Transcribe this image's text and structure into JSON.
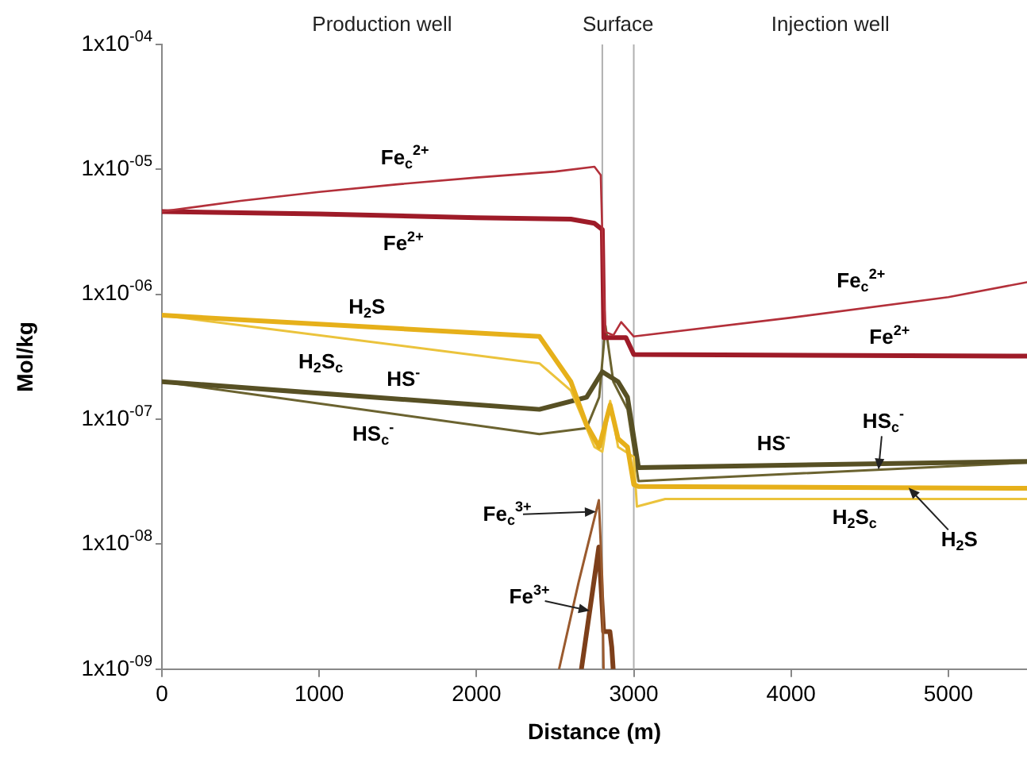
{
  "chart_data": {
    "type": "line",
    "xlabel": "Distance (m)",
    "ylabel": "Mol/kg",
    "log": "y",
    "grid": false,
    "legend": false,
    "line_style": "solid",
    "xlim": [
      0,
      5500
    ],
    "xticks": [
      0,
      1000,
      2000,
      3000,
      4000,
      5000
    ],
    "ylim": [
      1e-09,
      0.0001
    ],
    "yticks": [
      {
        "value": 0.0001,
        "label": "1x10$^{-04}$"
      },
      {
        "value": 1e-05,
        "label": "1x10$^{-05}$"
      },
      {
        "value": 1e-06,
        "label": "1x10$^{-06}$"
      },
      {
        "value": 1e-07,
        "label": "1x10$^{-07}$"
      },
      {
        "value": 1e-08,
        "label": "1x10$^{-08}$"
      },
      {
        "value": 1e-09,
        "label": "1x10$^{-09}$"
      }
    ],
    "ref_lines": [
      {
        "axis": "x",
        "value": 2800,
        "color": "#b0b0b0"
      },
      {
        "axis": "x",
        "value": 3000,
        "color": "#b0b0b0"
      }
    ],
    "series": [
      {
        "name": "Fe$_{c}$$^{2+}$",
        "color": "#b3303a",
        "x": [
          0,
          500,
          1000,
          1500,
          2000,
          2500,
          2750,
          2790,
          2810,
          2820,
          2870,
          2920,
          3000,
          4000,
          5000,
          5500
        ],
        "values": [
          4.6e-06,
          5.6e-06,
          6.6e-06,
          7.6e-06,
          8.6e-06,
          9.6e-06,
          1.05e-05,
          9e-06,
          1e-06,
          5e-07,
          4.7e-07,
          6e-07,
          4.6e-07,
          6.5e-07,
          9.5e-07,
          1.25e-06
        ]
      },
      {
        "name": "Fe$^{2+}$",
        "color": "#9e1b28",
        "x": [
          0,
          1000,
          2000,
          2600,
          2750,
          2800,
          2810,
          2950,
          3000,
          5500
        ],
        "values": [
          4.6e-06,
          4.4e-06,
          4.1e-06,
          4e-06,
          3.7e-06,
          3.3e-06,
          4.5e-07,
          4.5e-07,
          3.3e-07,
          3.2e-07
        ]
      },
      {
        "name": "H$_{2}$S",
        "color": "#e6b01a",
        "x": [
          0,
          2400,
          2600,
          2700,
          2780,
          2850,
          2900,
          2960,
          3000,
          3030,
          5500
        ],
        "values": [
          6.8e-07,
          4.6e-07,
          2e-07,
          9e-08,
          6e-08,
          1.3e-07,
          7e-08,
          6e-08,
          3e-08,
          2.9e-08,
          2.8e-08
        ]
      },
      {
        "name": "H$_{2}$S$_{c}$",
        "color": "#ebc33c",
        "x": [
          0,
          2400,
          2600,
          2750,
          2800,
          2850,
          2900,
          3000,
          3020,
          3200,
          5500
        ],
        "values": [
          6.8e-07,
          2.8e-07,
          1.7e-07,
          6e-08,
          5.5e-08,
          1.4e-07,
          6e-08,
          5e-08,
          2e-08,
          2.3e-08,
          2.3e-08
        ]
      },
      {
        "name": "HS$^{-}$",
        "color": "#575024",
        "x": [
          0,
          2400,
          2700,
          2800,
          2900,
          2960,
          3030,
          5500
        ],
        "values": [
          2e-07,
          1.2e-07,
          1.5e-07,
          2.4e-07,
          2e-07,
          1.5e-07,
          4.1e-08,
          4.6e-08
        ]
      },
      {
        "name": "HS$_{c}$$^{-}$",
        "color": "#6b6330",
        "x": [
          0,
          2400,
          2700,
          2780,
          2820,
          2870,
          2960,
          3030,
          5500
        ],
        "values": [
          2e-07,
          7.6e-08,
          8.5e-08,
          1.5e-07,
          5.6e-07,
          2e-07,
          1.2e-07,
          3.2e-08,
          4.5e-08
        ]
      },
      {
        "name": "Fe$_{c}$$^{3+}$",
        "color": "#9a5a2e",
        "x": [
          2525,
          2650,
          2778,
          2800,
          2808
        ],
        "values": [
          1e-09,
          5e-09,
          2.25e-08,
          5e-09,
          1e-09
        ]
      },
      {
        "name": "Fe$^{3+}$",
        "color": "#7d3f1a",
        "x": [
          2667,
          2778,
          2808,
          2848,
          2860,
          2869
        ],
        "values": [
          1e-09,
          9.5e-09,
          2e-09,
          2e-09,
          1.5e-09,
          1e-09
        ]
      }
    ],
    "annotations": [
      "Production well",
      "Surface",
      "Injection well"
    ]
  }
}
